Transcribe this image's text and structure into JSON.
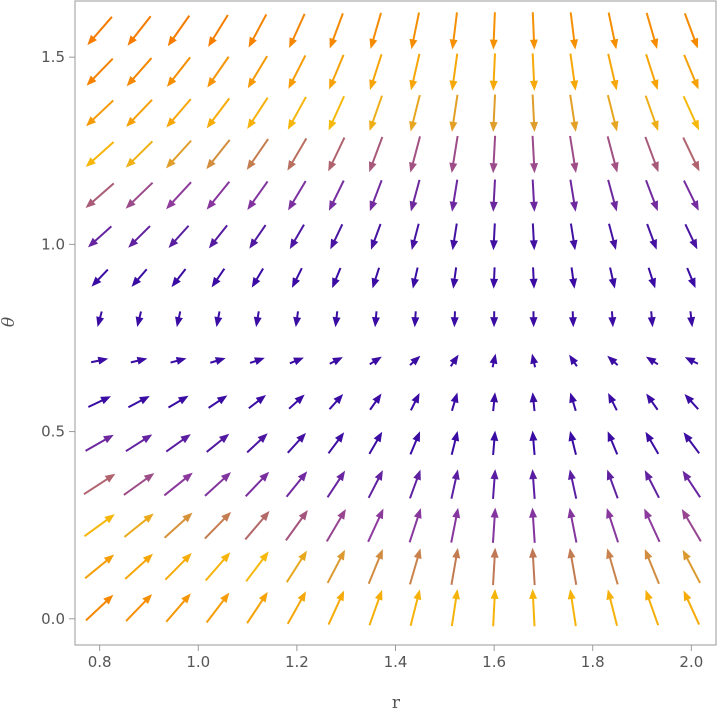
{
  "chart_data": {
    "type": "vector_field",
    "title": "",
    "xlabel": "r",
    "ylabel": "θ",
    "xlim": [
      0.75,
      2.05
    ],
    "ylim": [
      -0.07,
      1.65
    ],
    "xticks": [
      0.8,
      1.0,
      1.2,
      1.4,
      1.6,
      1.8,
      2.0
    ],
    "xtick_labels": [
      "0.8",
      "1.0",
      "1.2",
      "1.4",
      "1.6",
      "1.8",
      "2.0"
    ],
    "yticks": [
      0.0,
      0.5,
      1.0,
      1.5
    ],
    "ytick_labels": [
      "0.0",
      "0.5",
      "1.0",
      "1.5"
    ],
    "grid": false,
    "legend": "none",
    "field": {
      "r_min": 0.8,
      "r_max": 2.0,
      "r_count": 16,
      "theta_min": 0.03,
      "theta_max": 1.57,
      "theta_count": 15,
      "fixed_point": [
        1.64,
        0.72
      ],
      "description_expression": "dr = (1.64 - r)·cos(2θ)·0.6 ; dθ = -0.9·(θ - 0.72)"
    },
    "colors": {
      "low": "#3a0ca3",
      "mid": "#8e3a9d",
      "high": "#f6b90b",
      "peak": "#f57c00",
      "axis": "#9a9a9a",
      "text": "#555555"
    }
  }
}
